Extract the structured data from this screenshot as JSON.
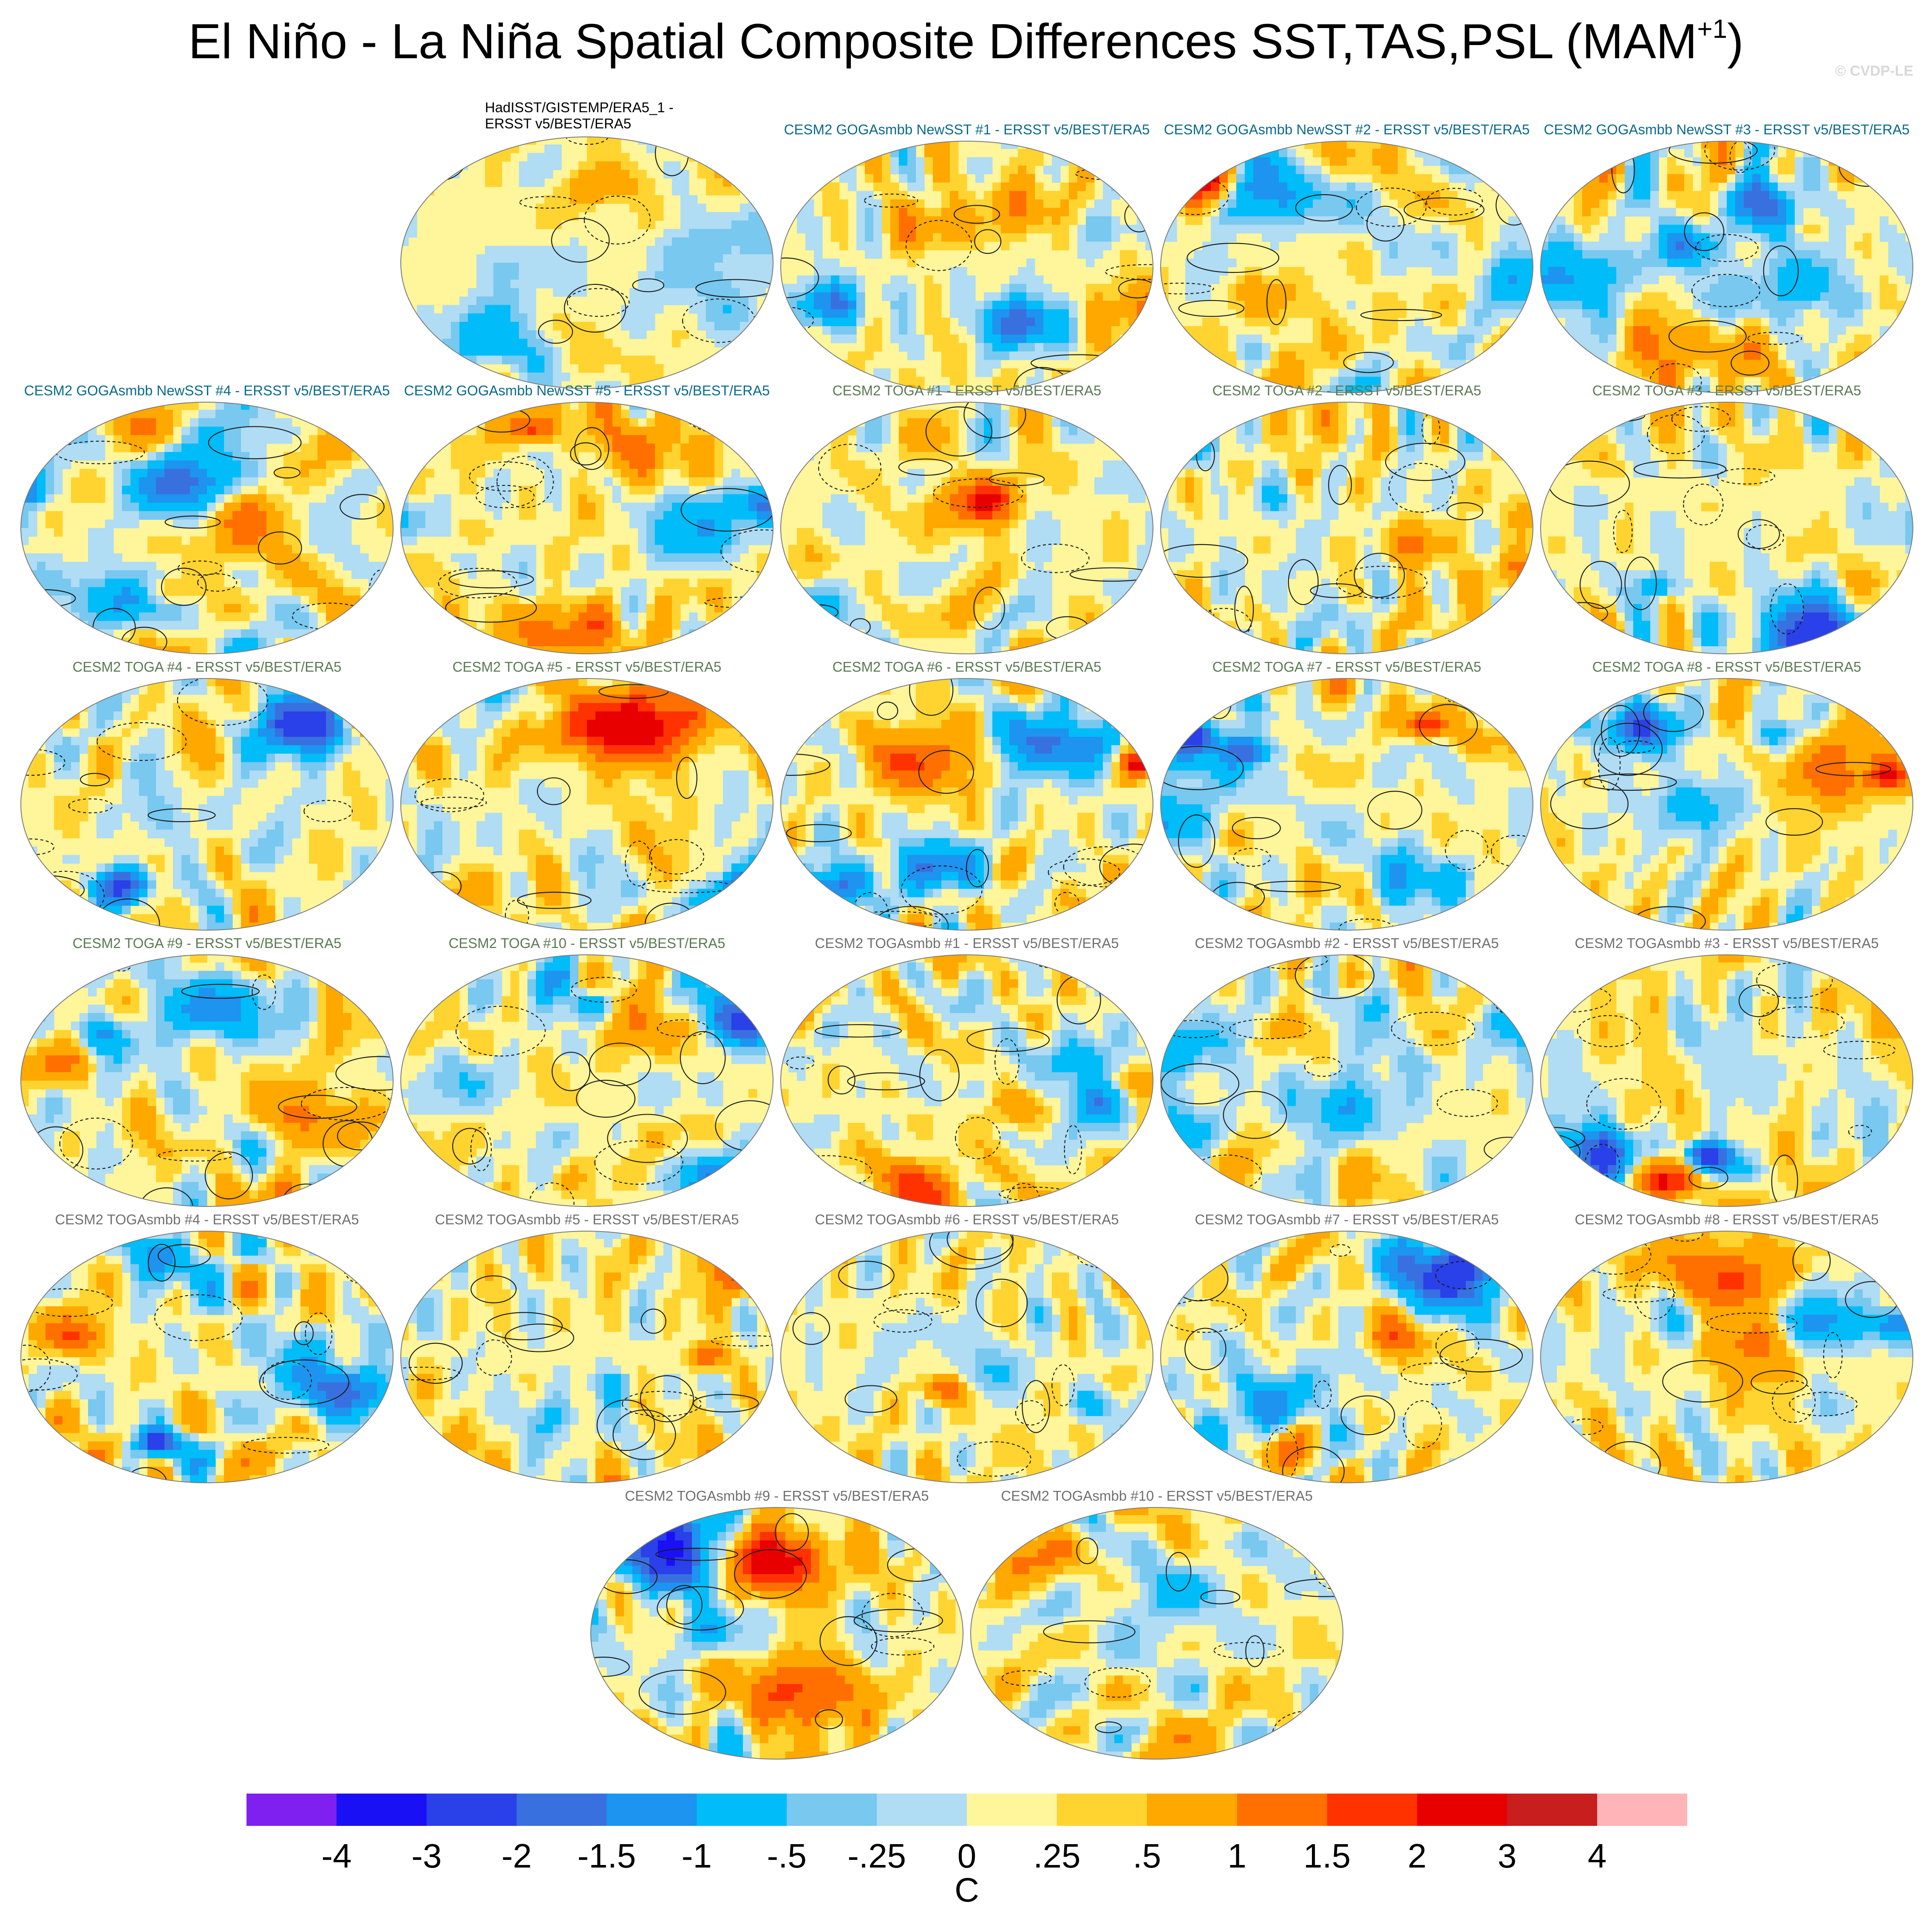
{
  "title": "El Niño - La Niña Spatial Composite Differences SST,TAS,PSL (MAM",
  "title_superscript": "+1",
  "title_suffix": ")",
  "copyright": "© CVDP-LE",
  "colors": {
    "goga_title": "#0a6a8a",
    "toga_title": "#5a7a52",
    "togasmbb_title": "#707070",
    "obs_title": "#000000",
    "ocean_neutral": "#fff59a",
    "land_contour": "#7a7a7a"
  },
  "chart_data": {
    "type": "heatmap",
    "projection": "Robinson",
    "fields": [
      "SST",
      "TAS",
      "PSL"
    ],
    "season": "MAM+1",
    "colorbar": {
      "unit": "C",
      "tick_labels": [
        "-4",
        "-3",
        "-2",
        "-1.5",
        "-1",
        "-.5",
        "-.25",
        "0",
        ".25",
        ".5",
        "1",
        "1.5",
        "2",
        "3",
        "4"
      ],
      "colors": [
        "#8020f0",
        "#1a10f5",
        "#2a40e8",
        "#3870e0",
        "#1c94f0",
        "#00bcf8",
        "#78c8f0",
        "#b0dcf4",
        "#fff59a",
        "#ffd430",
        "#ffa800",
        "#ff7000",
        "#ff3200",
        "#e80000",
        "#c81e1e",
        "#ffb4b8"
      ]
    },
    "panels": [
      {
        "title_line1": "HadISST/GISTEMP/ERA5_1 -",
        "title_line2": "ERSST v5/BEST/ERA5",
        "group": "obs",
        "seed": 3
      },
      {
        "title": "CESM2 GOGAsmbb NewSST #1 - ERSST v5/BEST/ERA5",
        "group": "goga",
        "seed": 11
      },
      {
        "title": "CESM2 GOGAsmbb NewSST #2 - ERSST v5/BEST/ERA5",
        "group": "goga",
        "seed": 12
      },
      {
        "title": "CESM2 GOGAsmbb NewSST #3 - ERSST v5/BEST/ERA5",
        "group": "goga",
        "seed": 13
      },
      {
        "title": "CESM2 GOGAsmbb NewSST #4 - ERSST v5/BEST/ERA5",
        "group": "goga",
        "seed": 14
      },
      {
        "title": "CESM2 GOGAsmbb NewSST #5 - ERSST v5/BEST/ERA5",
        "group": "goga",
        "seed": 15
      },
      {
        "title": "CESM2 TOGA #1 - ERSST v5/BEST/ERA5",
        "group": "toga",
        "seed": 21
      },
      {
        "title": "CESM2 TOGA #2 - ERSST v5/BEST/ERA5",
        "group": "toga",
        "seed": 22
      },
      {
        "title": "CESM2 TOGA #3 - ERSST v5/BEST/ERA5",
        "group": "toga",
        "seed": 23
      },
      {
        "title": "CESM2 TOGA #4 - ERSST v5/BEST/ERA5",
        "group": "toga",
        "seed": 24
      },
      {
        "title": "CESM2 TOGA #5 - ERSST v5/BEST/ERA5",
        "group": "toga",
        "seed": 25
      },
      {
        "title": "CESM2 TOGA #6 - ERSST v5/BEST/ERA5",
        "group": "toga",
        "seed": 26
      },
      {
        "title": "CESM2 TOGA #7 - ERSST v5/BEST/ERA5",
        "group": "toga",
        "seed": 27
      },
      {
        "title": "CESM2 TOGA #8 - ERSST v5/BEST/ERA5",
        "group": "toga",
        "seed": 28
      },
      {
        "title": "CESM2 TOGA #9 - ERSST v5/BEST/ERA5",
        "group": "toga",
        "seed": 29
      },
      {
        "title": "CESM2 TOGA #10 - ERSST v5/BEST/ERA5",
        "group": "toga",
        "seed": 30
      },
      {
        "title": "CESM2 TOGAsmbb #1 - ERSST v5/BEST/ERA5",
        "group": "togasmbb",
        "seed": 31
      },
      {
        "title": "CESM2 TOGAsmbb #2 - ERSST v5/BEST/ERA5",
        "group": "togasmbb",
        "seed": 32
      },
      {
        "title": "CESM2 TOGAsmbb #3 - ERSST v5/BEST/ERA5",
        "group": "togasmbb",
        "seed": 33
      },
      {
        "title": "CESM2 TOGAsmbb #4 - ERSST v5/BEST/ERA5",
        "group": "togasmbb",
        "seed": 34
      },
      {
        "title": "CESM2 TOGAsmbb #5 - ERSST v5/BEST/ERA5",
        "group": "togasmbb",
        "seed": 35
      },
      {
        "title": "CESM2 TOGAsmbb #6 - ERSST v5/BEST/ERA5",
        "group": "togasmbb",
        "seed": 36
      },
      {
        "title": "CESM2 TOGAsmbb #7 - ERSST v5/BEST/ERA5",
        "group": "togasmbb",
        "seed": 37
      },
      {
        "title": "CESM2 TOGAsmbb #8 - ERSST v5/BEST/ERA5",
        "group": "togasmbb",
        "seed": 38
      },
      {
        "title": "CESM2 TOGAsmbb #9 - ERSST v5/BEST/ERA5",
        "group": "togasmbb",
        "seed": 39
      },
      {
        "title": "CESM2 TOGAsmbb #10 - ERSST v5/BEST/ERA5",
        "group": "togasmbb",
        "seed": 40
      }
    ]
  }
}
